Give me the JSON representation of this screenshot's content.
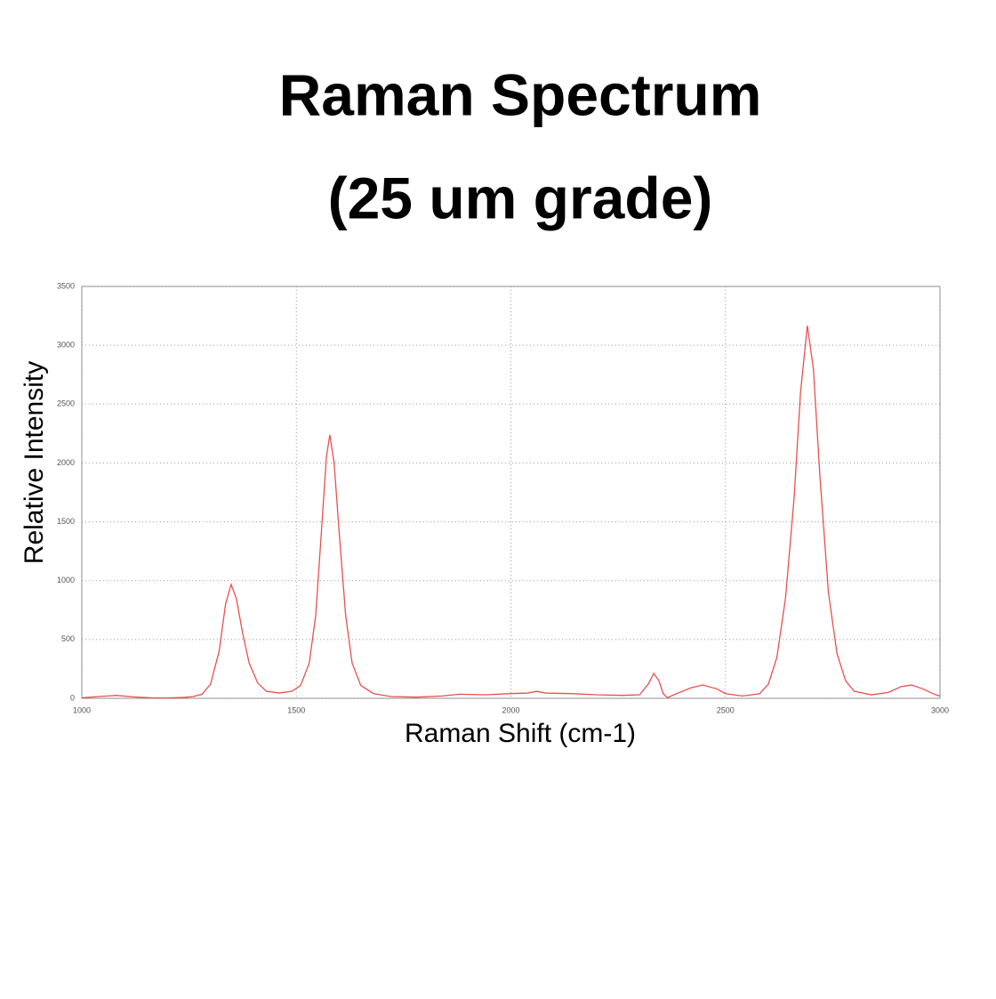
{
  "chart_data": {
    "type": "line",
    "title": "Raman Spectrum",
    "subtitle": "(25 um grade)",
    "xlabel": "Raman Shift (cm-1)",
    "ylabel": "Relative Intensity",
    "xlim": [
      1000,
      3000
    ],
    "xticks": [
      1000,
      1500,
      2000,
      2500,
      3000
    ],
    "ylim": [
      0,
      3500
    ],
    "yticks": [
      0,
      500,
      1000,
      1500,
      2000,
      2500,
      3000,
      3500
    ],
    "grid": true,
    "series": [
      {
        "color": "#e8504f",
        "x": [
          1000,
          1040,
          1080,
          1120,
          1160,
          1200,
          1240,
          1260,
          1280,
          1300,
          1320,
          1335,
          1348,
          1360,
          1375,
          1390,
          1410,
          1430,
          1460,
          1490,
          1510,
          1530,
          1545,
          1560,
          1570,
          1578,
          1588,
          1600,
          1615,
          1630,
          1650,
          1680,
          1720,
          1780,
          1840,
          1880,
          1940,
          2000,
          2040,
          2060,
          2080,
          2140,
          2200,
          2260,
          2300,
          2320,
          2333,
          2345,
          2355,
          2365,
          2380,
          2420,
          2447,
          2480,
          2500,
          2540,
          2580,
          2600,
          2620,
          2640,
          2660,
          2675,
          2691,
          2705,
          2720,
          2740,
          2760,
          2780,
          2800,
          2840,
          2880,
          2910,
          2934,
          2960,
          2990,
          3000
        ],
        "values": [
          5,
          15,
          25,
          12,
          5,
          3,
          8,
          15,
          35,
          120,
          400,
          800,
          968,
          850,
          550,
          300,
          130,
          60,
          45,
          60,
          110,
          300,
          700,
          1500,
          2050,
          2238,
          2000,
          1400,
          700,
          300,
          110,
          40,
          15,
          10,
          20,
          35,
          30,
          40,
          45,
          60,
          45,
          40,
          30,
          25,
          30,
          120,
          212,
          150,
          40,
          5,
          30,
          90,
          113,
          80,
          40,
          20,
          40,
          120,
          350,
          850,
          1700,
          2600,
          3167,
          2800,
          1900,
          900,
          380,
          150,
          60,
          30,
          50,
          100,
          113,
          80,
          30,
          20
        ]
      }
    ]
  }
}
